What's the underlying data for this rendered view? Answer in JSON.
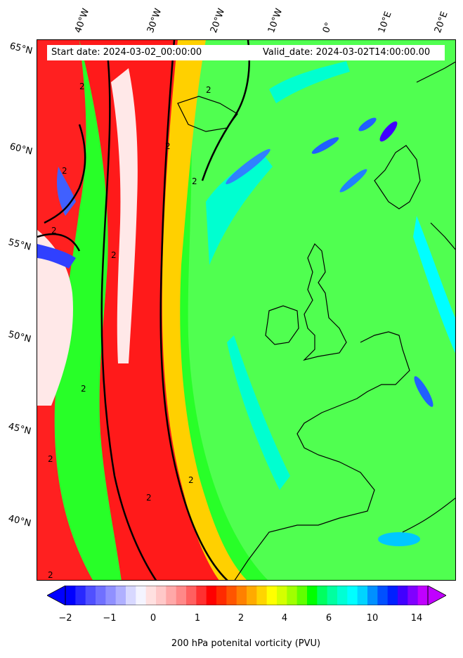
{
  "header": {
    "start_date": "Start date: 2024-03-02_00:00:00",
    "valid_date": "Valid_date: 2024-03-02T14:00:00.00"
  },
  "longitude_ticks": [
    "40°W",
    "30°W",
    "20°W",
    "10°W",
    "0°",
    "10°E",
    "20°E"
  ],
  "latitude_ticks": [
    "65°N",
    "60°N",
    "55°N",
    "50°N",
    "45°N",
    "40°N"
  ],
  "colorbar": {
    "ticks": [
      "−2",
      "−1",
      "0",
      "1",
      "2",
      "4",
      "6",
      "10",
      "14"
    ],
    "label": "200 hPa potenital vorticity (PVU)",
    "colors": [
      "#0000ff",
      "#2828ff",
      "#5050ff",
      "#7070ff",
      "#9090ff",
      "#b0b0ff",
      "#d8d8ff",
      "#f4f4ff",
      "#ffe0e0",
      "#ffc8c8",
      "#ffa8a8",
      "#ff8888",
      "#ff6060",
      "#ff3030",
      "#ff0000",
      "#ff2a00",
      "#ff5500",
      "#ff8000",
      "#ffaa00",
      "#ffd400",
      "#ffff00",
      "#d4ff00",
      "#a0ff00",
      "#60ff00",
      "#00ff00",
      "#00ff60",
      "#00ffa0",
      "#00ffd4",
      "#00ffff",
      "#00d4ff",
      "#0090ff",
      "#0050ff",
      "#0020ff",
      "#4000ff",
      "#8000ff",
      "#c000ff"
    ]
  },
  "map": {
    "contour_label": "2",
    "colors": {
      "background": "#00ff40",
      "high_pv_ridge": "#ff0000",
      "low_pv_core": "#fff0f0",
      "transition": "#ffff00",
      "high_values": "#00ffff",
      "coast": "#000000"
    }
  }
}
